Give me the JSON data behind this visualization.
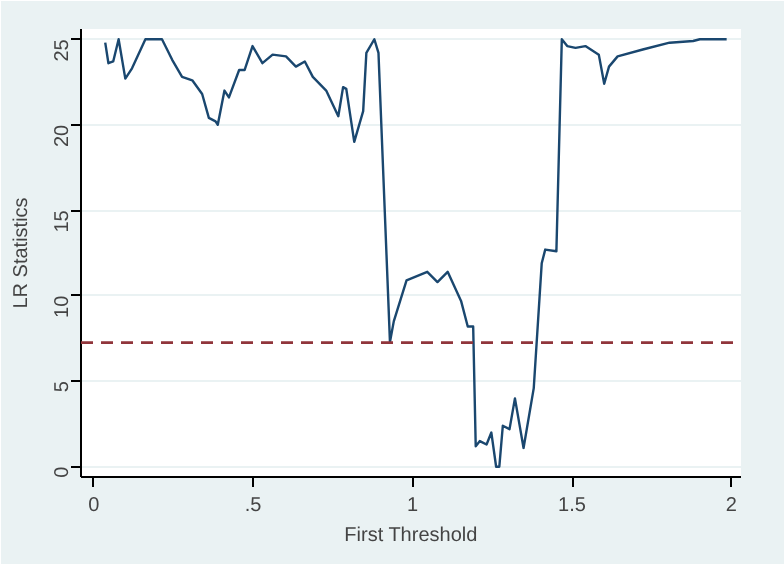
{
  "chart_data": {
    "type": "line",
    "xlabel": "First Threshold",
    "ylabel": "LR Statistics",
    "xlim": [
      -0.04,
      2.03
    ],
    "ylim": [
      -0.6,
      25.6
    ],
    "xticks": [
      {
        "value": 0,
        "label": "0"
      },
      {
        "value": 0.5,
        "label": ".5"
      },
      {
        "value": 1,
        "label": "1"
      },
      {
        "value": 1.5,
        "label": "1.5"
      },
      {
        "value": 2,
        "label": "2"
      }
    ],
    "yticks": [
      0,
      5,
      10,
      15,
      20,
      25
    ],
    "grid": "y",
    "marker": "none",
    "line_style": "solid",
    "series": [
      {
        "color": "#1a476f",
        "x": [
          0.036,
          0.046,
          0.061,
          0.078,
          0.099,
          0.12,
          0.162,
          0.214,
          0.246,
          0.277,
          0.309,
          0.34,
          0.361,
          0.382,
          0.389,
          0.41,
          0.424,
          0.456,
          0.473,
          0.498,
          0.529,
          0.561,
          0.603,
          0.634,
          0.662,
          0.687,
          0.729,
          0.767,
          0.782,
          0.792,
          0.817,
          0.845,
          0.855,
          0.88,
          0.893,
          0.929,
          0.941,
          0.981,
          1.046,
          1.078,
          1.11,
          1.152,
          1.173,
          1.19,
          1.198,
          1.211,
          1.232,
          1.247,
          1.262,
          1.272,
          1.283,
          1.304,
          1.321,
          1.348,
          1.38,
          1.405,
          1.416,
          1.451,
          1.468,
          1.485,
          1.511,
          1.542,
          1.584,
          1.601,
          1.616,
          1.643,
          1.722,
          1.806,
          1.88,
          1.901,
          1.985
        ],
        "values": [
          24.8,
          23.6,
          23.7,
          25,
          22.7,
          23.3,
          25,
          25,
          23.8,
          22.8,
          22.6,
          21.8,
          20.4,
          20.2,
          20,
          22,
          21.6,
          23.2,
          23.2,
          24.6,
          23.6,
          24.1,
          24,
          23.4,
          23.7,
          22.8,
          22,
          20.5,
          22.2,
          22.1,
          19,
          20.8,
          24.2,
          25,
          24.2,
          7.3,
          8.5,
          10.9,
          11.4,
          10.8,
          11.4,
          9.7,
          8.2,
          8.2,
          1.2,
          1.5,
          1.3,
          2,
          0,
          0,
          2.4,
          2.2,
          4,
          1.1,
          4.6,
          11.9,
          12.7,
          12.6,
          25,
          24.6,
          24.5,
          24.6,
          24.1,
          22.4,
          23.4,
          24,
          24.4,
          24.8,
          24.9,
          25,
          25
        ]
      }
    ],
    "ref_lines": [
      {
        "axis": "y",
        "value": 7.26,
        "color": "#90353b",
        "line_style": "dashed"
      }
    ]
  }
}
